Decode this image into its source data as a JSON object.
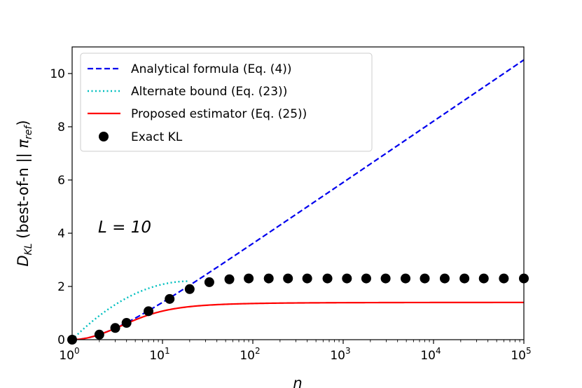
{
  "chart_data": {
    "type": "line",
    "xscale": "log",
    "xlim": [
      1,
      100000
    ],
    "ylim": [
      0,
      11
    ],
    "x_ticks": [
      {
        "base": "10",
        "exp": "0",
        "value": 1
      },
      {
        "base": "10",
        "exp": "1",
        "value": 10
      },
      {
        "base": "10",
        "exp": "2",
        "value": 100
      },
      {
        "base": "10",
        "exp": "3",
        "value": 1000
      },
      {
        "base": "10",
        "exp": "4",
        "value": 10000
      },
      {
        "base": "10",
        "exp": "5",
        "value": 100000
      }
    ],
    "y_ticks": [
      {
        "label": "0",
        "value": 0
      },
      {
        "label": "2",
        "value": 2
      },
      {
        "label": "4",
        "value": 4
      },
      {
        "label": "6",
        "value": 6
      },
      {
        "label": "8",
        "value": 8
      },
      {
        "label": "10",
        "value": 10
      }
    ],
    "xlabel": "n",
    "ylabel": {
      "main": "D",
      "sub": "KL",
      "mid": " (best-of-n || ",
      "pi": "π",
      "pisub": "ref",
      "close": ")"
    },
    "annotation": "L = 10",
    "legend_position": "upper-left",
    "grid": false,
    "L": 10,
    "series": [
      {
        "name": "Analytical formula (Eq. (4))",
        "style": "dashed",
        "color": "#0000ee",
        "formula": "log(n) - (n-1)/n"
      },
      {
        "name": "Alternate bound (Eq. (23))",
        "style": "dotted",
        "color": "#00bfbf",
        "x_end": 20,
        "formula": "bound"
      },
      {
        "name": "Proposed estimator (Eq. (25))",
        "style": "solid",
        "color": "#ff0000",
        "formula": "estimator"
      },
      {
        "name": "Exact KL",
        "style": "markers",
        "color": "#000000",
        "x": [
          1,
          2,
          3,
          4,
          7,
          12,
          20,
          33,
          55,
          90,
          150,
          245,
          400,
          670,
          1100,
          1800,
          2950,
          4900,
          8000,
          13300,
          22000,
          36000,
          60000,
          100000
        ],
        "y": [
          0.0,
          0.19,
          0.44,
          0.63,
          1.07,
          1.53,
          1.9,
          2.16,
          2.27,
          2.3,
          2.3,
          2.3,
          2.3,
          2.3,
          2.3,
          2.3,
          2.3,
          2.3,
          2.3,
          2.3,
          2.3,
          2.3,
          2.3,
          2.3
        ]
      }
    ]
  }
}
